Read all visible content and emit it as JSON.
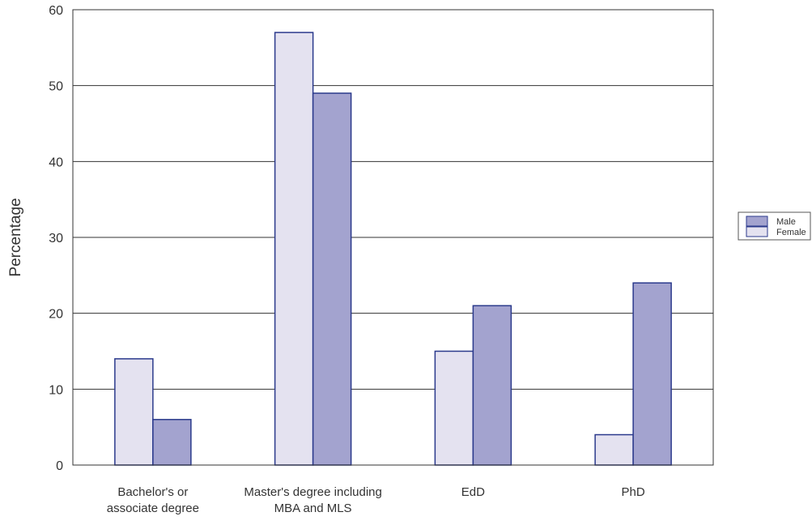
{
  "chart_data": {
    "type": "bar",
    "categories": [
      [
        "Bachelor's or",
        "associate degree"
      ],
      [
        "Master's degree including",
        "MBA and MLS"
      ],
      [
        "EdD"
      ],
      [
        "PhD"
      ]
    ],
    "series": [
      {
        "name": "Female",
        "values": [
          14,
          57,
          15,
          4
        ],
        "color": "#e4e2f0"
      },
      {
        "name": "Male",
        "values": [
          6,
          49,
          21,
          24
        ],
        "color": "#a3a3cf"
      }
    ],
    "legend_order": [
      "Male",
      "Female"
    ],
    "title": "",
    "xlabel": "",
    "ylabel": "Percentage",
    "ylim": [
      0,
      60
    ],
    "yticks": [
      0,
      10,
      20,
      30,
      40,
      50,
      60
    ],
    "grid": true,
    "legend_position": "right",
    "bar_edge_color": "#2b3a8c",
    "grid_color": "#333333"
  }
}
